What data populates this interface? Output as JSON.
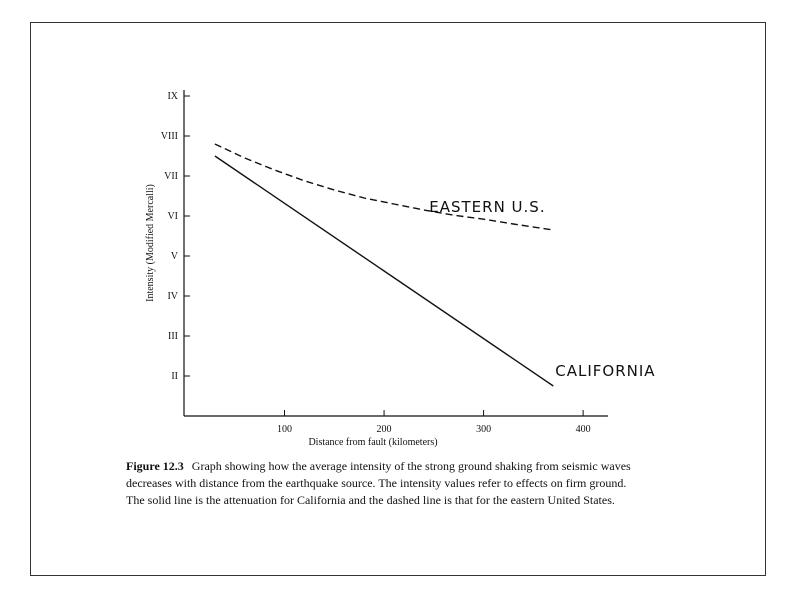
{
  "chart_data": {
    "type": "line",
    "title": "",
    "xlabel": "Distance from fault (kilometers)",
    "ylabel": "Intensity (Modified Mercalli)",
    "xlim": [
      -1,
      425
    ],
    "ylim": [
      1,
      9
    ],
    "x_ticks": [
      100,
      200,
      300,
      400
    ],
    "x_tick_labels": [
      "100",
      "200",
      "300",
      "400"
    ],
    "y_ticks": [
      2,
      3,
      4,
      5,
      6,
      7,
      8,
      9
    ],
    "y_tick_labels": [
      "II",
      "III",
      "IV",
      "V",
      "VI",
      "VII",
      "VIII",
      "IX"
    ],
    "grid": false,
    "series": [
      {
        "name": "EASTERN U.S.",
        "style": "dashed",
        "x": [
          30,
          60,
          90,
          120,
          150,
          180,
          210,
          240,
          270,
          300,
          330,
          370
        ],
        "y": [
          7.8,
          7.45,
          7.15,
          6.88,
          6.65,
          6.45,
          6.3,
          6.15,
          6.02,
          5.92,
          5.8,
          5.65
        ]
      },
      {
        "name": "CALIFORNIA",
        "style": "solid",
        "x": [
          30,
          370
        ],
        "y": [
          7.5,
          1.75
        ]
      }
    ]
  },
  "caption": {
    "figure_label": "Figure 12.3",
    "text": "Graph showing how the average intensity of the strong ground shaking from seismic waves decreases with distance from the earthquake source. The intensity values refer to effects on firm ground. The solid line is the attenuation for California and the dashed line is that for the eastern United States."
  }
}
